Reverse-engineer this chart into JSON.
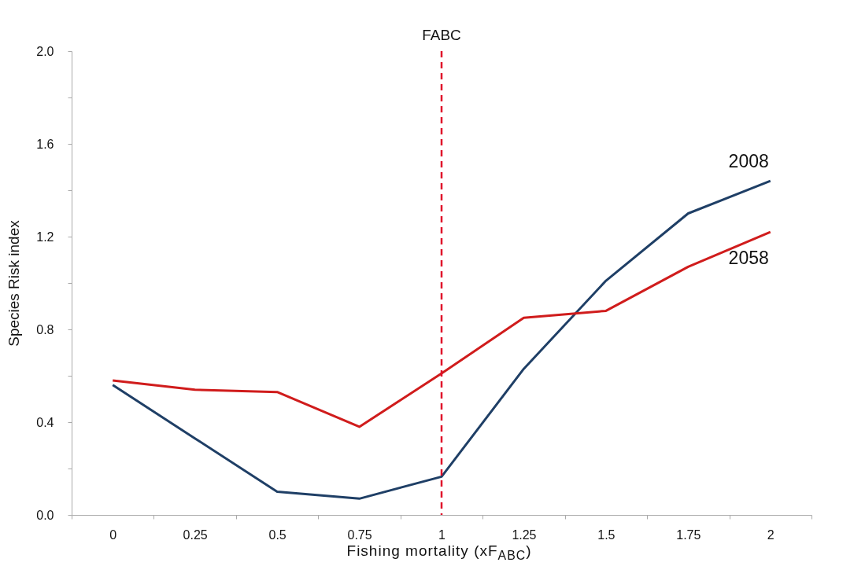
{
  "chart_data": {
    "type": "line",
    "xlabel": "Fishing mortality (xF$_{ABC}$)",
    "ylabel": "Species Risk index",
    "categories": [
      "0",
      "0.25",
      "0.5",
      "0.75",
      "1",
      "1.25",
      "1.5",
      "1.75",
      "2"
    ],
    "series": [
      {
        "name": "2008",
        "color": "#1f3f66",
        "values": [
          0.56,
          0.33,
          0.1,
          0.07,
          0.165,
          0.63,
          1.01,
          1.3,
          1.44
        ]
      },
      {
        "name": "2058",
        "color": "#d01c1c",
        "values": [
          0.58,
          0.54,
          0.53,
          0.38,
          0.61,
          0.85,
          0.88,
          1.07,
          1.22
        ]
      }
    ],
    "ylim": [
      0,
      2
    ],
    "yticks": [
      {
        "value": 0,
        "label": "0.0"
      },
      {
        "value": 0.2,
        "label": null
      },
      {
        "value": 0.4,
        "label": "0.4"
      },
      {
        "value": 0.6,
        "label": null
      },
      {
        "value": 0.8,
        "label": "0.8"
      },
      {
        "value": 1.0,
        "label": null
      },
      {
        "value": 1.2,
        "label": "1.2"
      },
      {
        "value": 1.4,
        "label": null
      },
      {
        "value": 1.6,
        "label": "1.6"
      },
      {
        "value": 1.8,
        "label": null
      },
      {
        "value": 2.0,
        "label": "2.0"
      }
    ],
    "ref_lines": [
      {
        "axis": "x",
        "value": "1",
        "label": "FABC",
        "color": "#e0102a",
        "line_style": "dashed"
      }
    ],
    "grid": false,
    "marker": "none",
    "line_style": "solid"
  }
}
